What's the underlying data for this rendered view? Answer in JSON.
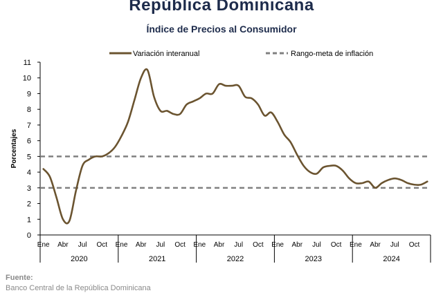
{
  "header": {
    "title": "República Dominicana",
    "subtitle": "Índice de Precios al Consumidor"
  },
  "source": {
    "label": "Fuente:",
    "text": "Banco Central de la República Dominicana"
  },
  "colors": {
    "series": "#6b5430",
    "target": "#808080",
    "title": "#1d2b4b",
    "text": "#000000"
  },
  "chart_data": {
    "type": "line",
    "title": "Índice de Precios al Consumidor",
    "ylabel": "Porcentajes",
    "ylim": [
      0,
      11
    ],
    "yticks": [
      0,
      1,
      2,
      3,
      4,
      5,
      6,
      7,
      8,
      9,
      10,
      11
    ],
    "grid": false,
    "legend_position": "top",
    "month_ticks": [
      "Ene",
      "Abr",
      "Jul",
      "Oct"
    ],
    "years": [
      "2020",
      "2021",
      "2022",
      "2023",
      "2024"
    ],
    "x": [
      "2020-01",
      "2020-02",
      "2020-03",
      "2020-04",
      "2020-05",
      "2020-06",
      "2020-07",
      "2020-08",
      "2020-09",
      "2020-10",
      "2020-11",
      "2020-12",
      "2021-01",
      "2021-02",
      "2021-03",
      "2021-04",
      "2021-05",
      "2021-06",
      "2021-07",
      "2021-08",
      "2021-09",
      "2021-10",
      "2021-11",
      "2021-12",
      "2022-01",
      "2022-02",
      "2022-03",
      "2022-04",
      "2022-05",
      "2022-06",
      "2022-07",
      "2022-08",
      "2022-09",
      "2022-10",
      "2022-11",
      "2022-12",
      "2023-01",
      "2023-02",
      "2023-03",
      "2023-04",
      "2023-05",
      "2023-06",
      "2023-07",
      "2023-08",
      "2023-09",
      "2023-10",
      "2023-11",
      "2023-12",
      "2024-01",
      "2024-02",
      "2024-03",
      "2024-04",
      "2024-05",
      "2024-06",
      "2024-07",
      "2024-08",
      "2024-09",
      "2024-10",
      "2024-11",
      "2024-12"
    ],
    "series": [
      {
        "name": "Variación interanual",
        "style": "solid",
        "values": [
          4.2,
          3.7,
          2.4,
          1.0,
          0.9,
          2.8,
          4.4,
          4.8,
          5.0,
          5.0,
          5.2,
          5.6,
          6.3,
          7.2,
          8.6,
          10.0,
          10.5,
          8.8,
          7.9,
          7.9,
          7.7,
          7.7,
          8.3,
          8.5,
          8.7,
          9.0,
          9.0,
          9.6,
          9.5,
          9.5,
          9.5,
          8.8,
          8.7,
          8.3,
          7.6,
          7.8,
          7.2,
          6.4,
          5.9,
          5.1,
          4.4,
          4.0,
          3.9,
          4.3,
          4.4,
          4.4,
          4.1,
          3.6,
          3.3,
          3.3,
          3.4,
          3.0,
          3.3,
          3.5,
          3.6,
          3.5,
          3.3,
          3.2,
          3.2,
          3.4
        ]
      },
      {
        "name": "Rango-meta de inflación",
        "style": "dashed",
        "bounds": [
          3,
          5
        ]
      }
    ]
  }
}
